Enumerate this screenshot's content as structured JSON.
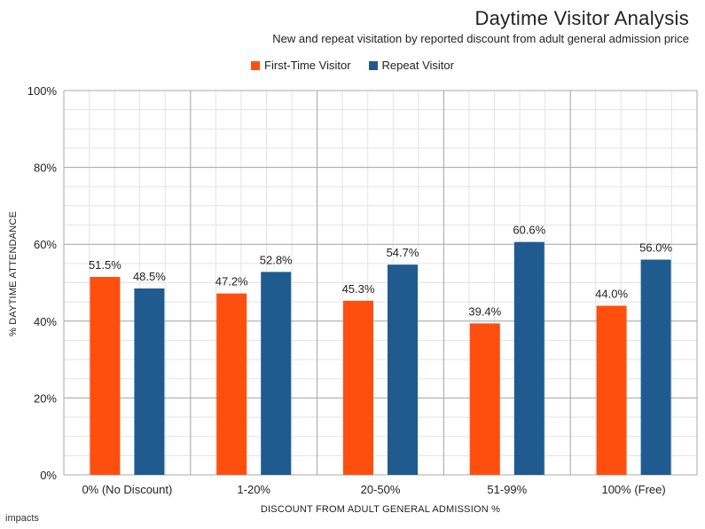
{
  "chart_data": {
    "type": "bar",
    "title": "Daytime Visitor Analysis",
    "subtitle": "New and repeat visitation by reported discount from adult general admission price",
    "xlabel": "DISCOUNT FROM ADULT GENERAL ADMISSION %",
    "ylabel": "% DAYTIME ATTENDANCE",
    "categories": [
      "0% (No Discount)",
      "1-20%",
      "20-50%",
      "51-99%",
      "100% (Free)"
    ],
    "series": [
      {
        "name": "First-Time Visitor",
        "color": "#ff4f0f",
        "values": [
          51.5,
          47.2,
          45.3,
          39.4,
          44.0
        ],
        "labels": [
          "51.5%",
          "47.2%",
          "45.3%",
          "39.4%",
          "44.0%"
        ]
      },
      {
        "name": "Repeat Visitor",
        "color": "#1f5b8f",
        "values": [
          48.5,
          52.8,
          54.7,
          60.6,
          56.0
        ],
        "labels": [
          "48.5%",
          "52.8%",
          "54.7%",
          "60.6%",
          "56.0%"
        ]
      }
    ],
    "ylim": [
      0,
      100
    ],
    "yticks": [
      0,
      20,
      40,
      60,
      80,
      100
    ],
    "ytick_labels": [
      "0%",
      "20%",
      "40%",
      "60%",
      "80%",
      "100%"
    ],
    "grid": true,
    "legend_position": "top-center"
  },
  "brand": "impacts"
}
